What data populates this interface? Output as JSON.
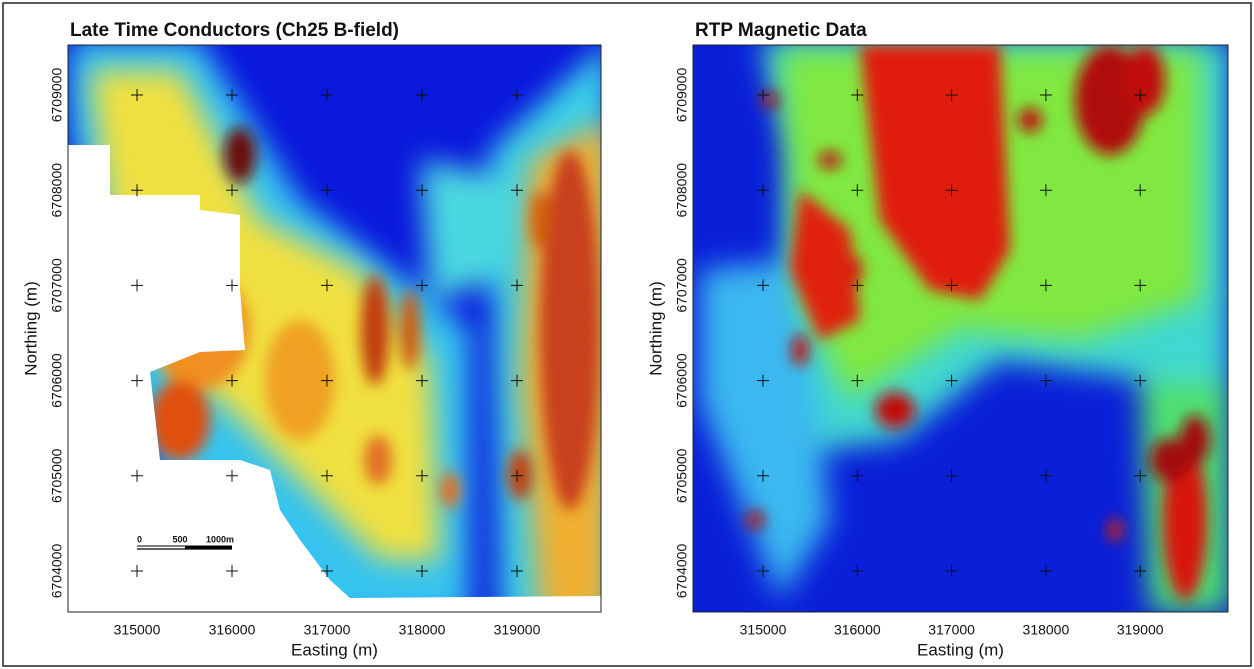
{
  "panels": [
    {
      "title": "Late Time Conductors (Ch25 B-field)",
      "x_label": "Easting (m)",
      "y_label": "Northing (m)",
      "x_ticks": [
        "315000",
        "316000",
        "317000",
        "318000",
        "319000"
      ],
      "y_ticks": [
        "6709000",
        "6708000",
        "6707000",
        "6706000",
        "6705000",
        "6704000"
      ]
    },
    {
      "title": "RTP Magnetic Data",
      "x_label": "Easting (m)",
      "y_label": "Northing (m)",
      "x_ticks": [
        "315000",
        "316000",
        "317000",
        "318000",
        "319000"
      ],
      "y_ticks": [
        "6709000",
        "6708000",
        "6707000",
        "6706000",
        "6705000",
        "6704000"
      ]
    }
  ],
  "scale_bar": {
    "labels": [
      "0",
      "500",
      "1000m"
    ]
  }
}
